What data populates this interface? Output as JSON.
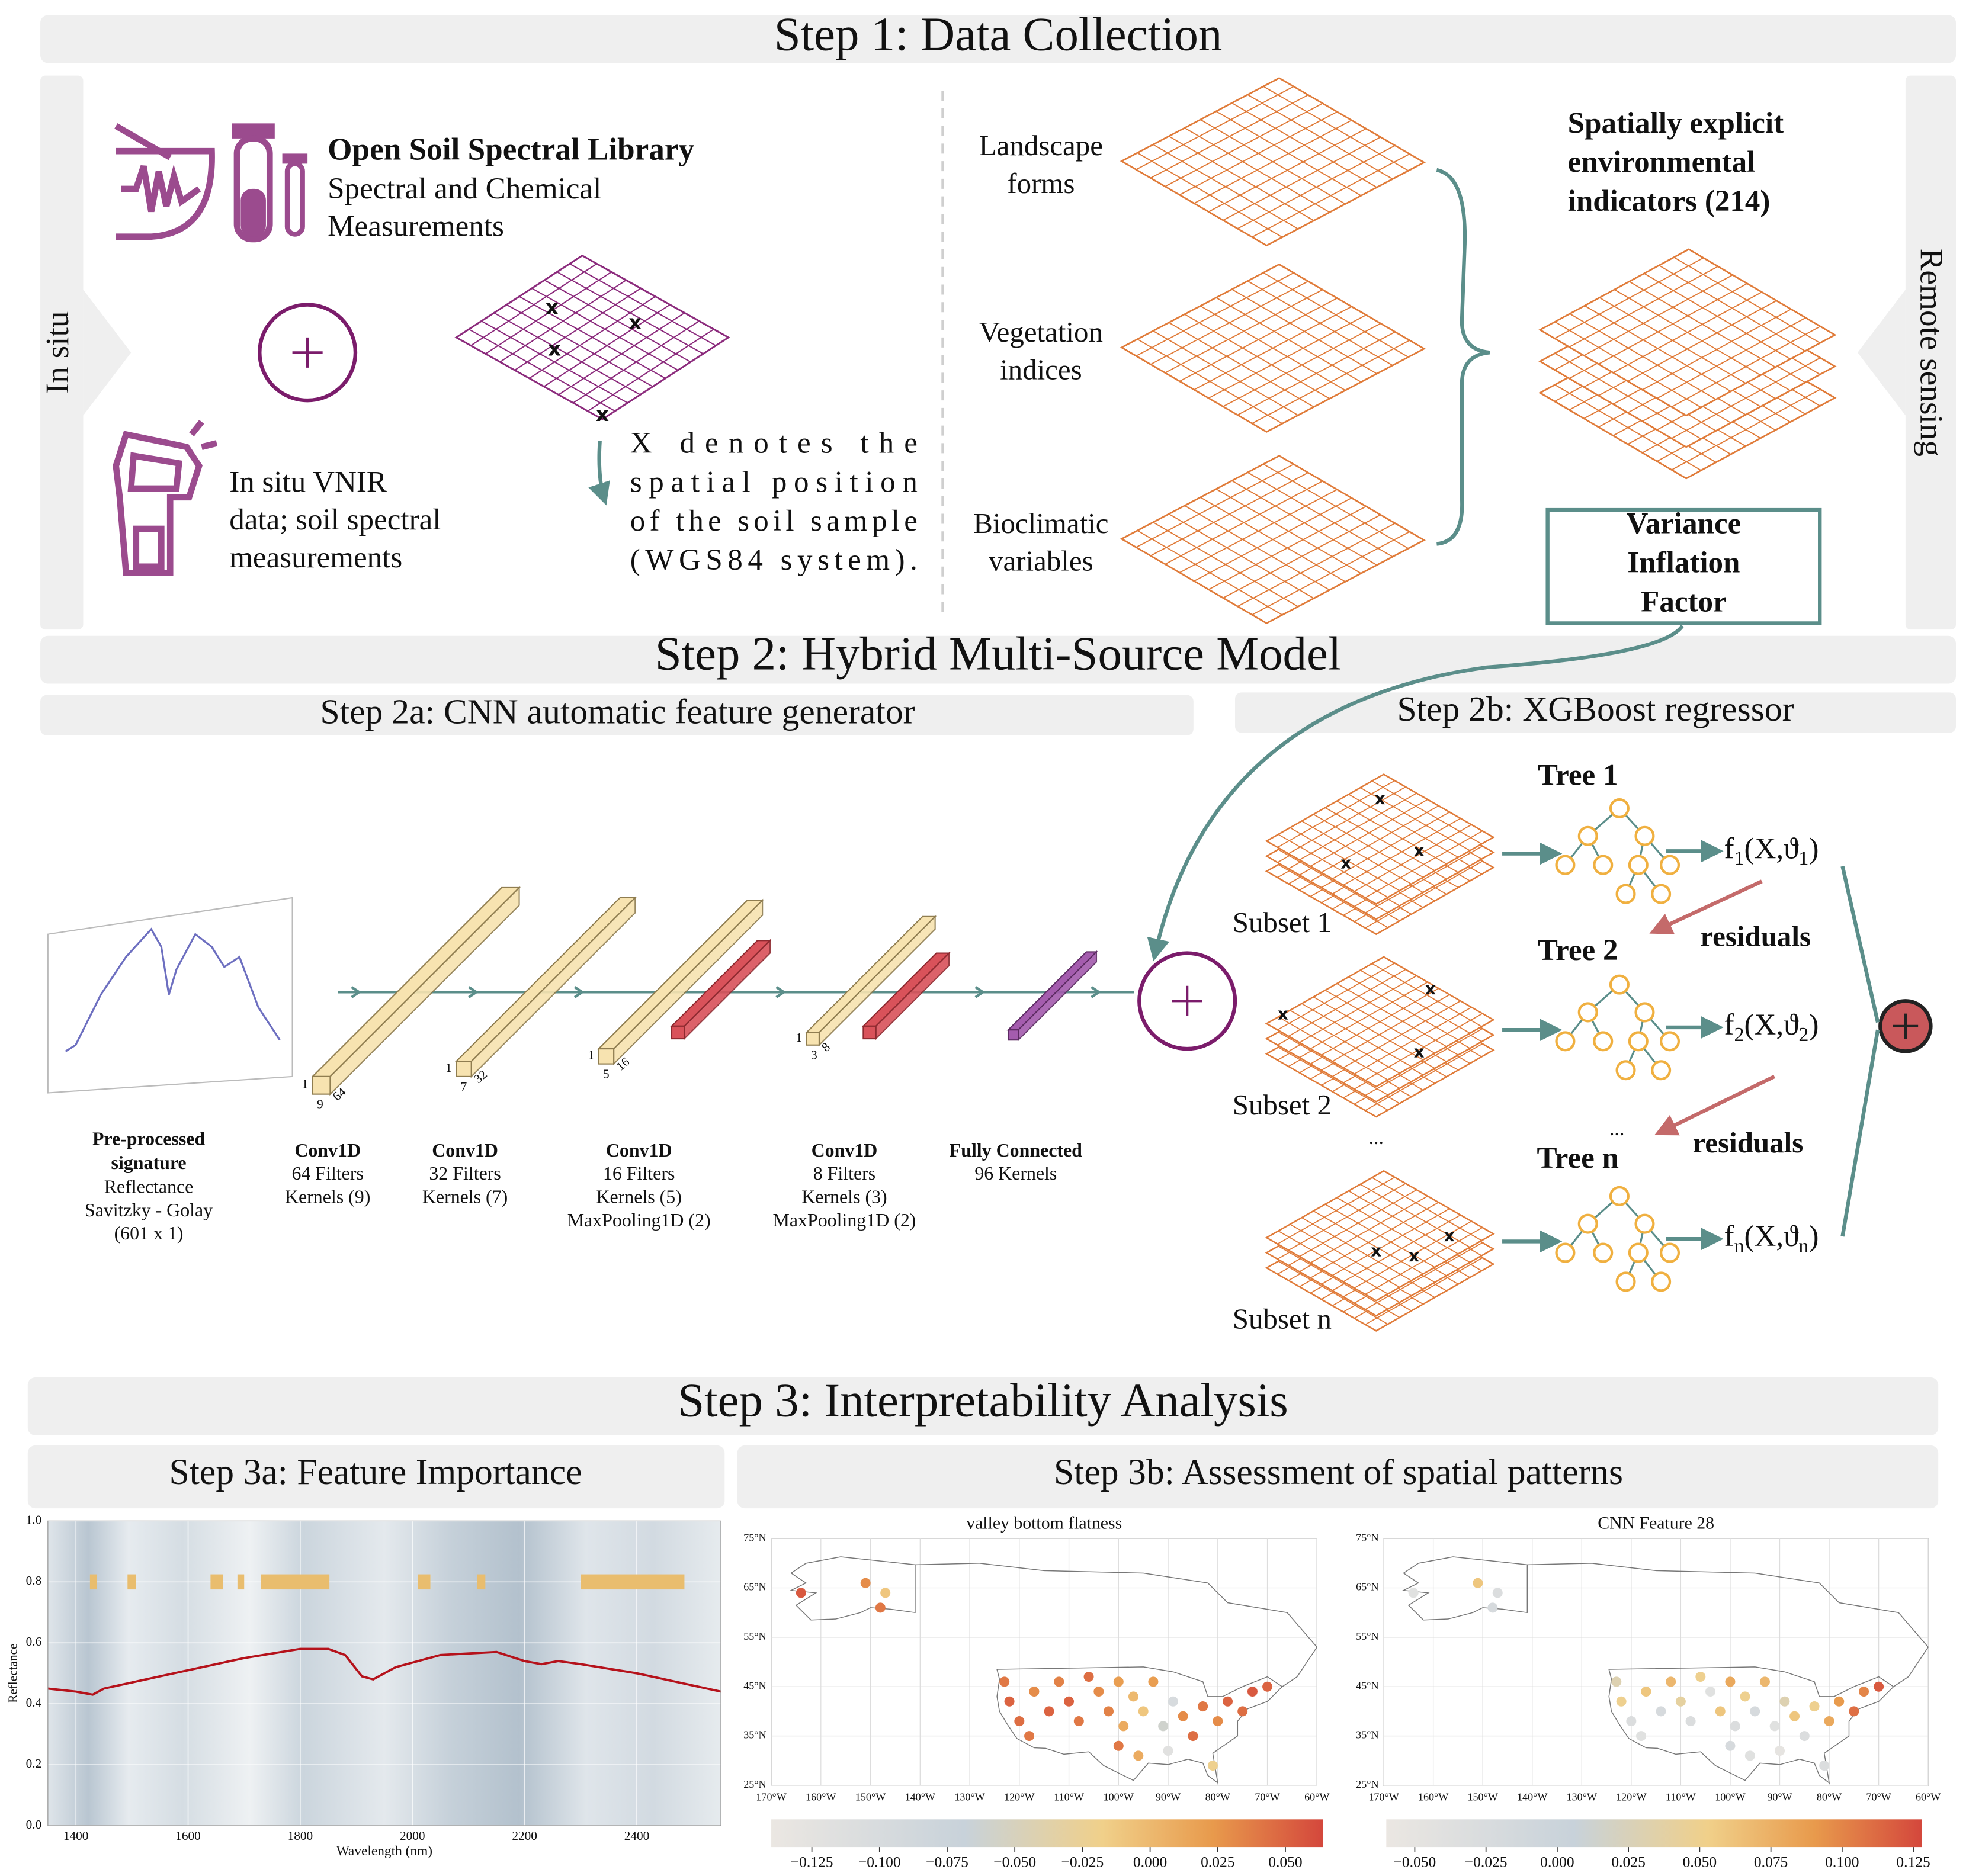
{
  "step1": {
    "title": "Step 1: Data Collection",
    "in_situ": "In situ",
    "remote_sensing": "Remote sensing",
    "library": {
      "name": "Open Soil Spectral Library",
      "lines": [
        "Spectral and Chemical",
        "Measurements"
      ]
    },
    "vnir": [
      "In situ VNIR",
      "data; soil spectral",
      "measurements"
    ],
    "sample_marker": "x",
    "position_note": [
      "X denotes the",
      "spatial position",
      "of the soil sample",
      "(WGS84 system)."
    ],
    "layers": [
      [
        "Landscape",
        "forms"
      ],
      [
        "Vegetation",
        "indices"
      ],
      [
        "Bioclimatic",
        "variables"
      ]
    ],
    "indicators": [
      "Spatially explicit",
      "environmental",
      "indicators (214)"
    ],
    "vif": [
      "Variance",
      "Inflation",
      "Factor"
    ]
  },
  "step2": {
    "title": "Step 2: Hybrid Multi-Source Model",
    "cnn": {
      "title": "Step 2a: CNN automatic feature generator",
      "input": {
        "label": [
          "Pre-processed",
          "signature"
        ],
        "lines": [
          "Reflectance",
          "Savitzky - Golay",
          "(601 x 1)"
        ]
      },
      "layers": [
        {
          "dims": [
            "1",
            "9",
            "64"
          ],
          "lines": [
            "Conv1D",
            "64 Filters",
            "Kernels (9)"
          ]
        },
        {
          "dims": [
            "1",
            "7",
            "32"
          ],
          "lines": [
            "Conv1D",
            "32 Filters",
            "Kernels (7)"
          ]
        },
        {
          "dims": [
            "1",
            "5",
            "16"
          ],
          "lines": [
            "Conv1D",
            "16 Filters",
            "Kernels (5)",
            "MaxPooling1D (2)"
          ]
        },
        {
          "dims": [
            "1",
            "3",
            "8"
          ],
          "lines": [
            "Conv1D",
            "8 Filters",
            "Kernels (3)",
            "MaxPooling1D (2)"
          ]
        },
        {
          "lines": [
            "Fully Connected",
            "96 Kernels"
          ]
        }
      ]
    },
    "xgboost": {
      "title": "Step 2b: XGBoost regressor",
      "stages": [
        {
          "tree": "Tree 1",
          "subset": "Subset 1",
          "output": [
            "f",
            "1",
            "(X,ϑ",
            "1",
            ")"
          ]
        },
        {
          "tree": "Tree 2",
          "subset": "Subset 2",
          "output": [
            "f",
            "2",
            "(X,ϑ",
            "2",
            ")"
          ]
        },
        {
          "tree": "Tree n",
          "subset": "Subset n",
          "output": [
            "f",
            "n",
            "(X,ϑ",
            "n",
            ")"
          ]
        }
      ],
      "residuals": [
        "residuals",
        "residuals"
      ],
      "ellipsis": [
        "...",
        "..."
      ]
    }
  },
  "step3": {
    "title": "Step 3: Interpretability Analysis",
    "importance": {
      "title": "Step 3a: Feature Importance",
      "chart": {
        "type": "line",
        "xlabel": "Wavelength (nm)",
        "ylabel": "Reflectance",
        "xlim": [
          1350,
          2550
        ],
        "ylim": [
          0,
          1
        ],
        "xticks": [
          1400,
          1600,
          1800,
          2000,
          2200,
          2400
        ],
        "yticks": [
          {
            "value": 0,
            "label": "0.0"
          },
          {
            "value": 0.2,
            "label": "0.2"
          },
          {
            "value": 0.4,
            "label": "0.4"
          },
          {
            "value": 0.6,
            "label": "0.6"
          },
          {
            "value": 0.8,
            "label": "0.8"
          },
          {
            "value": 1,
            "label": "1.0"
          }
        ],
        "grid": true,
        "color": "#b5121b",
        "x": [
          1350,
          1400,
          1430,
          1450,
          1500,
          1600,
          1700,
          1800,
          1850,
          1880,
          1910,
          1930,
          1970,
          2050,
          2150,
          2200,
          2230,
          2260,
          2300,
          2400,
          2500,
          2550
        ],
        "values": [
          0.45,
          0.44,
          0.43,
          0.45,
          0.47,
          0.51,
          0.55,
          0.58,
          0.58,
          0.56,
          0.49,
          0.48,
          0.52,
          0.56,
          0.57,
          0.54,
          0.53,
          0.54,
          0.53,
          0.5,
          0.46,
          0.44
        ],
        "band_level": 0.8,
        "band_color": "#e9bd6e",
        "bands": [
          [
            1425,
            1437
          ],
          [
            1492,
            1507
          ],
          [
            1640,
            1662
          ],
          [
            1688,
            1700
          ],
          [
            1730,
            1852
          ],
          [
            2010,
            2032
          ],
          [
            2115,
            2130
          ],
          [
            2300,
            2485
          ]
        ]
      }
    },
    "spatial": {
      "title": "Step 3b: Assessment of spatial patterns",
      "maps": [
        {
          "title": "valley bottom flatness",
          "xlim": [
            -170,
            -60
          ],
          "ylim": [
            25,
            75
          ],
          "xticks": [
            {
              "value": -170,
              "label": "170°W"
            },
            {
              "value": -160,
              "label": "160°W"
            },
            {
              "value": -150,
              "label": "150°W"
            },
            {
              "value": -140,
              "label": "140°W"
            },
            {
              "value": -130,
              "label": "130°W"
            },
            {
              "value": -120,
              "label": "120°W"
            },
            {
              "value": -110,
              "label": "110°W"
            },
            {
              "value": -100,
              "label": "100°W"
            },
            {
              "value": -90,
              "label": "90°W"
            },
            {
              "value": -80,
              "label": "80°W"
            },
            {
              "value": -70,
              "label": "70°W"
            },
            {
              "value": -60,
              "label": "60°W"
            }
          ],
          "yticks": [
            {
              "value": 25,
              "label": "25°N"
            },
            {
              "value": 35,
              "label": "35°N"
            },
            {
              "value": 45,
              "label": "45°N"
            },
            {
              "value": 55,
              "label": "55°N"
            },
            {
              "value": 65,
              "label": "65°N"
            },
            {
              "value": 75,
              "label": "75°N"
            }
          ],
          "clim": [
            -0.14,
            0.064
          ],
          "cticks": [
            {
              "value": -0.125,
              "label": "−0.125"
            },
            {
              "value": -0.1,
              "label": "−0.100"
            },
            {
              "value": -0.075,
              "label": "−0.075"
            },
            {
              "value": -0.05,
              "label": "−0.050"
            },
            {
              "value": -0.025,
              "label": "−0.025"
            },
            {
              "value": 0,
              "label": "0.000"
            },
            {
              "value": 0.025,
              "label": "0.025"
            },
            {
              "value": 0.05,
              "label": "0.050"
            }
          ],
          "points": [
            [
              -164,
              64,
              0.055
            ],
            [
              -151,
              66,
              0.03
            ],
            [
              -147,
              64,
              -0.01
            ],
            [
              -148,
              61,
              0.04
            ],
            [
              -123,
              46,
              0.04
            ],
            [
              -122,
              42,
              0.05
            ],
            [
              -120,
              38,
              0.045
            ],
            [
              -118,
              35,
              0.04
            ],
            [
              -117,
              44,
              0.03
            ],
            [
              -114,
              40,
              0.05
            ],
            [
              -112,
              46,
              0.035
            ],
            [
              -110,
              42,
              0.05
            ],
            [
              -108,
              38,
              0.04
            ],
            [
              -106,
              47,
              0.045
            ],
            [
              -104,
              44,
              0.03
            ],
            [
              -102,
              40,
              0.035
            ],
            [
              -100,
              46,
              0.02
            ],
            [
              -99,
              37,
              0.01
            ],
            [
              -97,
              43,
              0.0
            ],
            [
              -95,
              40,
              -0.01
            ],
            [
              -93,
              46,
              0.02
            ],
            [
              -91,
              37,
              -0.06
            ],
            [
              -89,
              42,
              -0.1
            ],
            [
              -87,
              39,
              0.03
            ],
            [
              -85,
              35,
              0.045
            ],
            [
              -83,
              41,
              0.04
            ],
            [
              -80,
              38,
              0.03
            ],
            [
              -78,
              42,
              0.05
            ],
            [
              -75,
              40,
              0.045
            ],
            [
              -73,
              44,
              0.055
            ],
            [
              -70,
              45,
              0.05
            ],
            [
              -96,
              31,
              0.01
            ],
            [
              -81,
              29,
              -0.02
            ],
            [
              -100,
              33,
              0.04
            ],
            [
              -90,
              32,
              -0.12
            ]
          ]
        },
        {
          "title": "CNN Feature 28",
          "xlim": [
            -170,
            -60
          ],
          "ylim": [
            25,
            75
          ],
          "xticks": [
            {
              "value": -170,
              "label": "170°W"
            },
            {
              "value": -160,
              "label": "160°W"
            },
            {
              "value": -150,
              "label": "150°W"
            },
            {
              "value": -140,
              "label": "140°W"
            },
            {
              "value": -130,
              "label": "130°W"
            },
            {
              "value": -120,
              "label": "120°W"
            },
            {
              "value": -110,
              "label": "110°W"
            },
            {
              "value": -100,
              "label": "100°W"
            },
            {
              "value": -90,
              "label": "90°W"
            },
            {
              "value": -80,
              "label": "80°W"
            },
            {
              "value": -70,
              "label": "70°W"
            },
            {
              "value": -60,
              "label": "60°W"
            }
          ],
          "yticks": [
            {
              "value": 25,
              "label": "25°N"
            },
            {
              "value": 35,
              "label": "35°N"
            },
            {
              "value": 45,
              "label": "45°N"
            },
            {
              "value": 55,
              "label": "55°N"
            },
            {
              "value": 65,
              "label": "65°N"
            },
            {
              "value": 75,
              "label": "75°N"
            }
          ],
          "clim": [
            -0.06,
            0.128
          ],
          "cticks": [
            {
              "value": -0.05,
              "label": "−0.050"
            },
            {
              "value": -0.025,
              "label": "−0.025"
            },
            {
              "value": 0,
              "label": "0.000"
            },
            {
              "value": 0.025,
              "label": "0.025"
            },
            {
              "value": 0.05,
              "label": "0.050"
            },
            {
              "value": 0.075,
              "label": "0.075"
            },
            {
              "value": 0.1,
              "label": "0.100"
            },
            {
              "value": 0.125,
              "label": "0.125"
            }
          ],
          "points": [
            [
              -164,
              64,
              -0.04
            ],
            [
              -151,
              66,
              0.06
            ],
            [
              -147,
              64,
              -0.03
            ],
            [
              -148,
              61,
              -0.02
            ],
            [
              -123,
              46,
              0.03
            ],
            [
              -122,
              42,
              0.05
            ],
            [
              -120,
              38,
              -0.03
            ],
            [
              -118,
              35,
              -0.04
            ],
            [
              -117,
              44,
              0.06
            ],
            [
              -114,
              40,
              -0.02
            ],
            [
              -112,
              46,
              0.07
            ],
            [
              -110,
              42,
              0.04
            ],
            [
              -108,
              38,
              -0.03
            ],
            [
              -106,
              47,
              0.05
            ],
            [
              -104,
              44,
              -0.04
            ],
            [
              -102,
              40,
              0.06
            ],
            [
              -100,
              46,
              0.08
            ],
            [
              -99,
              37,
              -0.03
            ],
            [
              -97,
              43,
              0.05
            ],
            [
              -95,
              40,
              -0.02
            ],
            [
              -93,
              46,
              0.07
            ],
            [
              -91,
              37,
              -0.04
            ],
            [
              -89,
              42,
              0.03
            ],
            [
              -87,
              39,
              0.06
            ],
            [
              -85,
              35,
              -0.03
            ],
            [
              -83,
              41,
              0.05
            ],
            [
              -80,
              38,
              0.08
            ],
            [
              -78,
              42,
              0.09
            ],
            [
              -75,
              40,
              0.11
            ],
            [
              -73,
              44,
              0.1
            ],
            [
              -70,
              45,
              0.12
            ],
            [
              -96,
              31,
              -0.04
            ],
            [
              -81,
              29,
              -0.03
            ],
            [
              -100,
              33,
              -0.02
            ],
            [
              -90,
              32,
              -0.05
            ]
          ]
        }
      ]
    }
  }
}
